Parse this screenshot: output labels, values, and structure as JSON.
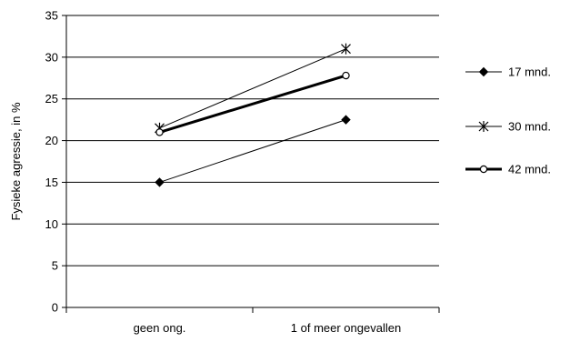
{
  "chart_data": {
    "type": "line",
    "title": "",
    "xlabel": "",
    "ylabel": "Fysieke agressie, in %",
    "ylim": [
      0,
      35
    ],
    "yticks": [
      0,
      5,
      10,
      15,
      20,
      25,
      30,
      35
    ],
    "y_tick_labels": [
      "0",
      "5",
      "10",
      "15",
      "20",
      "25",
      "30",
      "35"
    ],
    "categories": [
      "geen ong.",
      "1 of meer ongevallen"
    ],
    "grid": "horizontal",
    "legend_position": "right",
    "series": [
      {
        "name": "17 mnd.",
        "values": [
          15,
          22.5
        ],
        "marker": "diamond-filled",
        "line": "thin",
        "color": "#000000"
      },
      {
        "name": "30 mnd.",
        "values": [
          21.5,
          31
        ],
        "marker": "asterisk",
        "line": "thin",
        "color": "#000000"
      },
      {
        "name": "42 mnd.",
        "values": [
          21,
          27.8
        ],
        "marker": "circle-open",
        "line": "thick",
        "color": "#000000"
      }
    ]
  }
}
